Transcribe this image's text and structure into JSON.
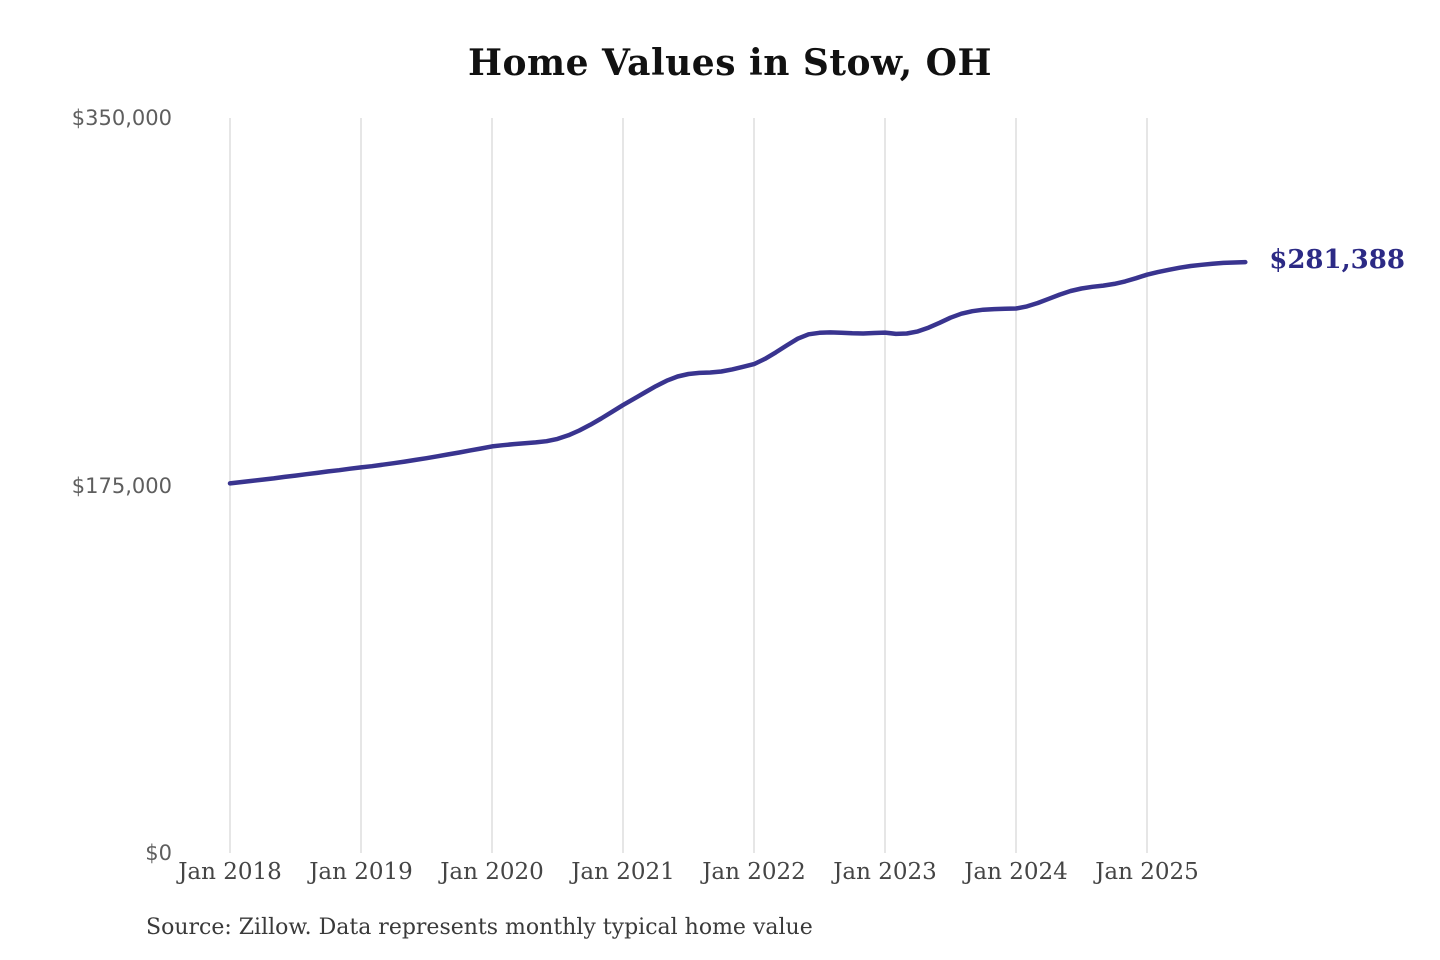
{
  "source_note": "Source: Zillow. Data represents monthly typical home value",
  "chart_data": {
    "type": "line",
    "title": "Home Values in Stow, OH",
    "xlabel": "",
    "ylabel": "",
    "ylim": [
      0,
      350000
    ],
    "grid": "vertical-only",
    "legend": "none",
    "end_label": "$281,388",
    "latest_value": 281388,
    "colors": {
      "line": "#39348f",
      "end_label": "#2c2a85",
      "gridline": "#cccccc",
      "title": "#111111",
      "ytick": "#5e5e5e",
      "xtick": "#454545"
    },
    "yticks": [
      {
        "label": "$0",
        "value": 0
      },
      {
        "label": "$175,000",
        "value": 175000
      },
      {
        "label": "$350,000",
        "value": 350000
      }
    ],
    "x_gridlines": [
      {
        "label": "Jan 2018",
        "month_index": 0
      },
      {
        "label": "Jan 2019",
        "month_index": 12
      },
      {
        "label": "Jan 2020",
        "month_index": 24
      },
      {
        "label": "Jan 2021",
        "month_index": 36
      },
      {
        "label": "Jan 2022",
        "month_index": 48
      },
      {
        "label": "Jan 2023",
        "month_index": 60
      },
      {
        "label": "Jan 2024",
        "month_index": 72
      },
      {
        "label": "Jan 2025",
        "month_index": 84
      }
    ],
    "x": [
      "2018-01",
      "2018-02",
      "2018-03",
      "2018-04",
      "2018-05",
      "2018-06",
      "2018-07",
      "2018-08",
      "2018-09",
      "2018-10",
      "2018-11",
      "2018-12",
      "2019-01",
      "2019-02",
      "2019-03",
      "2019-04",
      "2019-05",
      "2019-06",
      "2019-07",
      "2019-08",
      "2019-09",
      "2019-10",
      "2019-11",
      "2019-12",
      "2020-01",
      "2020-02",
      "2020-03",
      "2020-04",
      "2020-05",
      "2020-06",
      "2020-07",
      "2020-08",
      "2020-09",
      "2020-10",
      "2020-11",
      "2020-12",
      "2021-01",
      "2021-02",
      "2021-03",
      "2021-04",
      "2021-05",
      "2021-06",
      "2021-07",
      "2021-08",
      "2021-09",
      "2021-10",
      "2021-11",
      "2021-12",
      "2022-01",
      "2022-02",
      "2022-03",
      "2022-04",
      "2022-05",
      "2022-06",
      "2022-07",
      "2022-08",
      "2022-09",
      "2022-10",
      "2022-11",
      "2022-12",
      "2023-01",
      "2023-02",
      "2023-03",
      "2023-04",
      "2023-05",
      "2023-06",
      "2023-07",
      "2023-08",
      "2023-09",
      "2023-10",
      "2023-11",
      "2023-12",
      "2024-01",
      "2024-02",
      "2024-03",
      "2024-04",
      "2024-05",
      "2024-06",
      "2024-07",
      "2024-08",
      "2024-09",
      "2024-10",
      "2024-11",
      "2024-12",
      "2025-01",
      "2025-02",
      "2025-03",
      "2025-04",
      "2025-05",
      "2025-06",
      "2025-07",
      "2025-08",
      "2025-09",
      "2025-10"
    ],
    "values": [
      176000,
      176600,
      177200,
      177800,
      178400,
      179100,
      179700,
      180400,
      181000,
      181700,
      182300,
      183000,
      183600,
      184200,
      184900,
      185600,
      186400,
      187200,
      188000,
      188900,
      189800,
      190700,
      191700,
      192600,
      193600,
      194200,
      194700,
      195100,
      195500,
      196100,
      197200,
      198900,
      201200,
      203900,
      206900,
      210100,
      213300,
      216300,
      219300,
      222300,
      224900,
      226900,
      228100,
      228600,
      228800,
      229300,
      230300,
      231500,
      232800,
      235300,
      238400,
      241700,
      244900,
      247000,
      247700,
      247900,
      247700,
      247500,
      247400,
      247600,
      247800,
      247200,
      247400,
      248400,
      250200,
      252500,
      254900,
      256800,
      258000,
      258700,
      259000,
      259200,
      259300,
      260300,
      261900,
      263900,
      265900,
      267600,
      268800,
      269600,
      270200,
      271000,
      272200,
      273700,
      275400,
      276600,
      277700,
      278700,
      279500,
      280100,
      280600,
      281000,
      281200,
      281388
    ]
  }
}
